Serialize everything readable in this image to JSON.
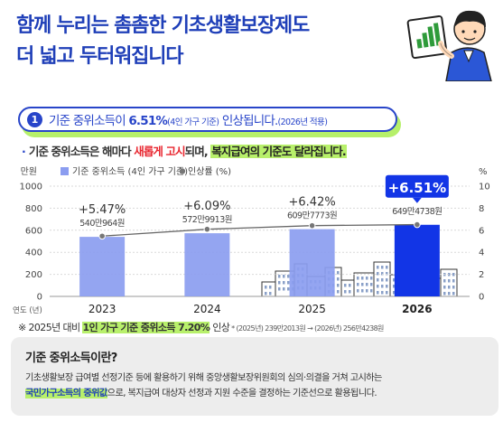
{
  "header": {
    "title_line1": "함께 누리는 촘촘한 기초생활보장제도",
    "title_line2": "더 넓고 두터워집니다"
  },
  "pill": {
    "number": "1",
    "text_a": "기준 중위소득이 ",
    "rate": "6.51%",
    "text_small": "(4인 가구 기준)",
    "text_b": " 인상됩니다.",
    "year_note": "(2026년 적용)"
  },
  "subtitle": {
    "bullet": "·",
    "part1": "기준 중위소득은 해마다 ",
    "part2": "새롭게 고시",
    "part3": "되며, ",
    "part4": "복지급여의 기준도 달라집니다."
  },
  "chart_data": {
    "type": "bar",
    "categories": [
      "2023",
      "2024",
      "2025",
      "2026"
    ],
    "series": [
      {
        "name": "기준 중위소득 (4인 가구 기준)",
        "values": [
          540.0964,
          572.9913,
          609.7773,
          649.4738
        ],
        "axis": "left",
        "color": "#8b9df0"
      },
      {
        "name": "인상률 (%)",
        "values": [
          5.47,
          6.09,
          6.42,
          6.51
        ],
        "axis": "right",
        "color": "#777777"
      }
    ],
    "value_labels": [
      "540만964원",
      "572만9913원",
      "609만7773원",
      "649만4738원"
    ],
    "rate_labels": [
      "+5.47%",
      "+6.09%",
      "+6.42%",
      "+6.51%"
    ],
    "highlight_index": 3,
    "highlight_color": "#1235e6",
    "yleft_unit": "만원",
    "yright_unit": "%",
    "ylim_left": [
      0,
      1000
    ],
    "ylim_right": [
      0,
      10
    ],
    "yticks_left": [
      "0",
      "200",
      "400",
      "600",
      "800",
      "1000"
    ],
    "yticks_right": [
      "0",
      "2",
      "4",
      "6",
      "8",
      "10"
    ],
    "xaxis_unit": "연도 (년)",
    "legend_position": "top-left"
  },
  "note": {
    "prefix": "※ 2025년 대비 ",
    "highlight": "1인 가구 기준 중위소득 7.20%",
    "suffix": " 인상",
    "tiny": " * (2025년) 239만2013원 → (2026년) 256만4238원"
  },
  "info": {
    "heading": "기준 중위소득이란?",
    "line1": "기초생활보장 급여별 선정기준 등에 활용하기 위해 중앙생활보장위원회의 심의·의결을 거쳐 고시하는",
    "highlight": "국민가구소득의 중위값",
    "line2": "으로, 복지급여 대상자 선정과 지원 수준을 결정하는 기준선으로 활용됩니다."
  }
}
